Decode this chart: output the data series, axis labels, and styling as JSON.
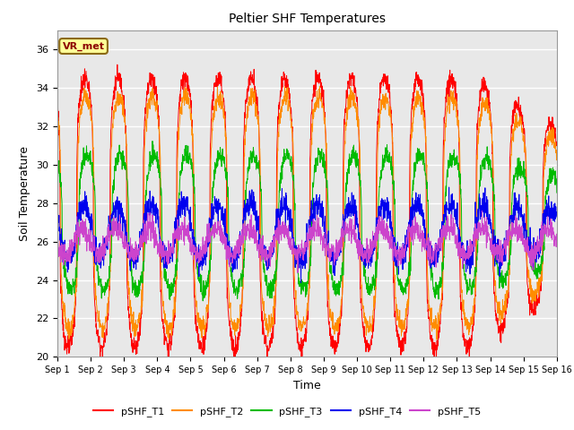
{
  "title": "Peltier SHF Temperatures",
  "xlabel": "Time",
  "ylabel": "Soil Temperature",
  "ylim": [
    20,
    37
  ],
  "yticks": [
    20,
    22,
    24,
    26,
    28,
    30,
    32,
    34,
    36
  ],
  "xtick_labels": [
    "Sep 1",
    "Sep 2",
    "Sep 3",
    "Sep 4",
    "Sep 5",
    "Sep 6",
    "Sep 7",
    "Sep 8",
    "Sep 9",
    "Sep 10",
    "Sep 11",
    "Sep 12",
    "Sep 13",
    "Sep 14",
    "Sep 15",
    "Sep 16"
  ],
  "series_colors": {
    "pSHF_T1": "#ff0000",
    "pSHF_T2": "#ff8c00",
    "pSHF_T3": "#00bb00",
    "pSHF_T4": "#0000ee",
    "pSHF_T5": "#cc44cc"
  },
  "annotation_text": "VR_met",
  "background_color": "#e8e8e8",
  "fig_color": "#ffffff",
  "grid_color": "#ffffff",
  "n_days": 15,
  "samples_per_day": 144,
  "T1_base": 27.5,
  "T1_amp": 7.0,
  "T1_noise": 0.25,
  "T2_base": 27.5,
  "T2_amp": 6.0,
  "T2_noise": 0.25,
  "T3_base": 27.0,
  "T3_amp": 3.5,
  "T3_noise": 0.25,
  "T4_base": 26.5,
  "T4_amp": 1.4,
  "T4_noise": 0.35,
  "T5_base": 26.0,
  "T5_amp": 0.7,
  "T5_noise": 0.3
}
